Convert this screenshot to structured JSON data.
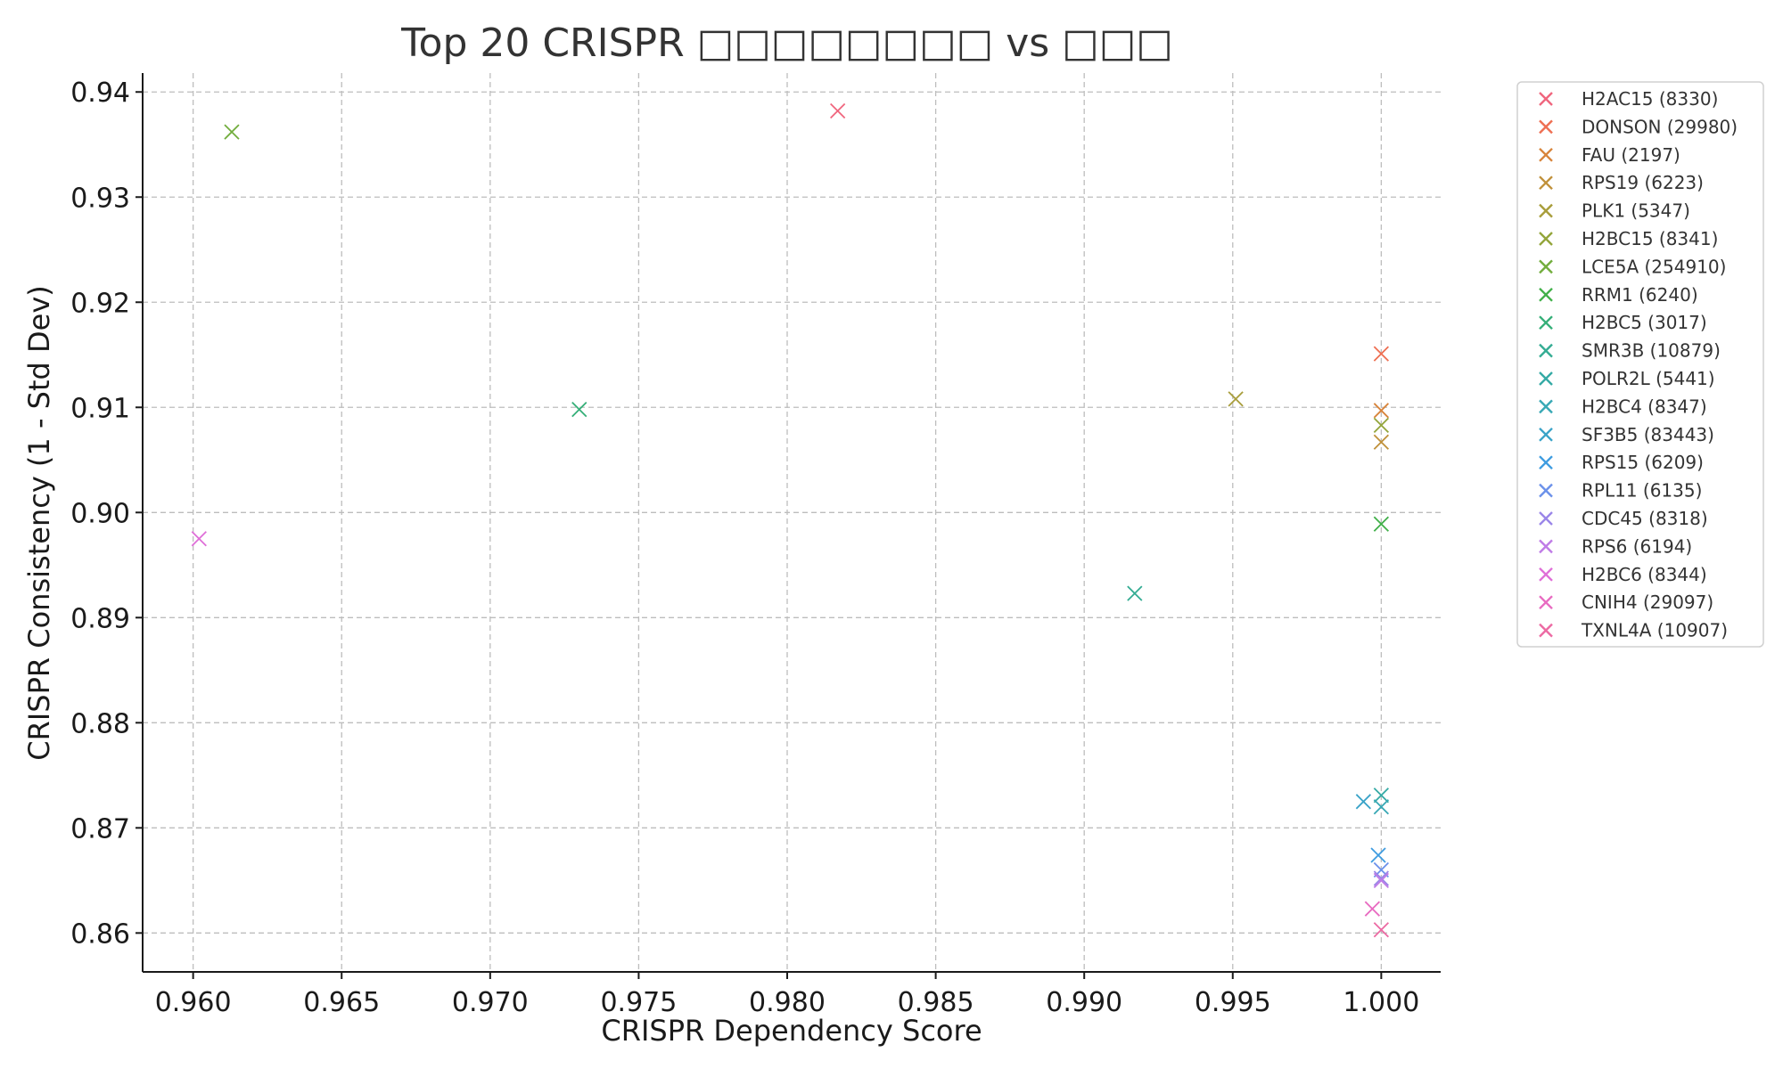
{
  "chart_data": {
    "type": "scatter",
    "title": "Top 20 CRISPR □□□□□□□□ vs □□□",
    "xlabel": "CRISPR Dependency Score",
    "ylabel": "CRISPR Consistency (1 - Std Dev)",
    "xlim": [
      0.9583,
      1.002
    ],
    "ylim": [
      0.8563,
      0.9418
    ],
    "xticks": [
      "0.960",
      "0.965",
      "0.970",
      "0.975",
      "0.980",
      "0.985",
      "0.990",
      "0.995",
      "1.000"
    ],
    "xtick_values": [
      0.96,
      0.965,
      0.97,
      0.975,
      0.98,
      0.985,
      0.99,
      0.995,
      1.0
    ],
    "yticks": [
      "0.86",
      "0.87",
      "0.88",
      "0.89",
      "0.90",
      "0.91",
      "0.92",
      "0.93",
      "0.94"
    ],
    "ytick_values": [
      0.86,
      0.87,
      0.88,
      0.89,
      0.9,
      0.91,
      0.92,
      0.93,
      0.94
    ],
    "grid": true,
    "marker": "x",
    "legend_position": "outside-right-top",
    "series": [
      {
        "name": "H2AC15 (8330)",
        "color": "#f0667e",
        "x": 0.9817,
        "y": 0.9382
      },
      {
        "name": "DONSON (29980)",
        "color": "#ee6f52",
        "x": 1.0,
        "y": 0.9151
      },
      {
        "name": "FAU (2197)",
        "color": "#d8843b",
        "x": 1.0,
        "y": 0.9097
      },
      {
        "name": "RPS19 (6223)",
        "color": "#c0913b",
        "x": 1.0,
        "y": 0.9067
      },
      {
        "name": "PLK1 (5347)",
        "color": "#a89d3a",
        "x": 0.9951,
        "y": 0.9108
      },
      {
        "name": "H2BC15 (8341)",
        "color": "#93a53b",
        "x": 1.0,
        "y": 0.9083
      },
      {
        "name": "LCE5A (254910)",
        "color": "#72ad3d",
        "x": 0.9613,
        "y": 0.9362
      },
      {
        "name": "RRM1 (6240)",
        "color": "#41b049",
        "x": 1.0,
        "y": 0.8989
      },
      {
        "name": "H2BC5 (3017)",
        "color": "#35af78",
        "x": 0.973,
        "y": 0.9098
      },
      {
        "name": "SMR3B (10879)",
        "color": "#34ac93",
        "x": 0.9917,
        "y": 0.8923
      },
      {
        "name": "POLR2L (5441)",
        "color": "#35aaa5",
        "x": 1.0,
        "y": 0.8731
      },
      {
        "name": "H2BC4 (8347)",
        "color": "#38a8b5",
        "x": 1.0,
        "y": 0.872
      },
      {
        "name": "SF3B5 (83443)",
        "color": "#3aa3c8",
        "x": 0.9994,
        "y": 0.8725
      },
      {
        "name": "RPS15 (6209)",
        "color": "#3e9ce0",
        "x": 0.9999,
        "y": 0.8674
      },
      {
        "name": "RPL11 (6135)",
        "color": "#6b91ea",
        "x": 1.0,
        "y": 0.866
      },
      {
        "name": "CDC45 (8318)",
        "color": "#9a86e8",
        "x": 1.0,
        "y": 0.8652
      },
      {
        "name": "RPS6 (6194)",
        "color": "#bf7be6",
        "x": 1.0,
        "y": 0.865
      },
      {
        "name": "H2BC6 (8344)",
        "color": "#df6fd8",
        "x": 0.9602,
        "y": 0.8975
      },
      {
        "name": "CNIH4 (29097)",
        "color": "#e86bc1",
        "x": 0.9997,
        "y": 0.8623
      },
      {
        "name": "TXNL4A (10907)",
        "color": "#ec6aa3",
        "x": 1.0,
        "y": 0.8603
      }
    ]
  }
}
